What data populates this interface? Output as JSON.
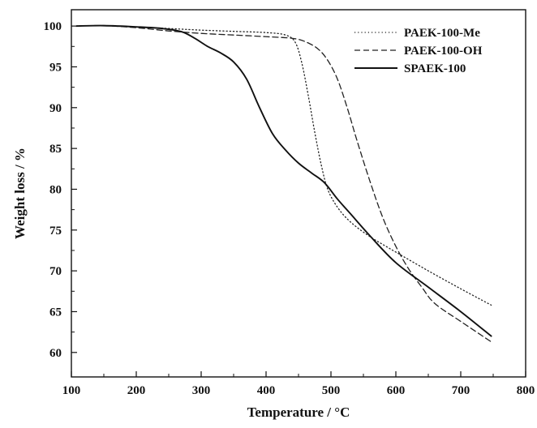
{
  "chart_data": {
    "type": "line",
    "xlabel": "Temperature / °C",
    "ylabel": "Weight loss / %",
    "xlim": [
      100,
      800
    ],
    "ylim": [
      57,
      102
    ],
    "x_ticks": [
      100,
      200,
      300,
      400,
      500,
      600,
      700,
      800
    ],
    "y_ticks": [
      60,
      65,
      70,
      75,
      80,
      85,
      90,
      95,
      100
    ],
    "grid": false,
    "legend_position": "top-right",
    "series": [
      {
        "name": "PAEK-100-Me",
        "line_style": "dotted",
        "color": "#222222",
        "points": [
          [
            108,
            100.0
          ],
          [
            150,
            100.05
          ],
          [
            200,
            99.9
          ],
          [
            250,
            99.7
          ],
          [
            300,
            99.5
          ],
          [
            350,
            99.35
          ],
          [
            400,
            99.2
          ],
          [
            430,
            98.9
          ],
          [
            445,
            98.0
          ],
          [
            455,
            95.5
          ],
          [
            465,
            91.5
          ],
          [
            475,
            87.0
          ],
          [
            485,
            83.0
          ],
          [
            495,
            80.0
          ],
          [
            510,
            77.8
          ],
          [
            530,
            76.0
          ],
          [
            560,
            74.2
          ],
          [
            600,
            72.3
          ],
          [
            650,
            70.0
          ],
          [
            700,
            67.8
          ],
          [
            747,
            65.8
          ]
        ]
      },
      {
        "name": "PAEK-100-OH",
        "line_style": "dashed",
        "color": "#222222",
        "points": [
          [
            108,
            100.0
          ],
          [
            150,
            100.05
          ],
          [
            200,
            99.8
          ],
          [
            250,
            99.4
          ],
          [
            300,
            99.1
          ],
          [
            350,
            98.9
          ],
          [
            400,
            98.7
          ],
          [
            440,
            98.5
          ],
          [
            460,
            98.1
          ],
          [
            480,
            97.2
          ],
          [
            495,
            95.8
          ],
          [
            510,
            93.5
          ],
          [
            525,
            90.0
          ],
          [
            540,
            86.0
          ],
          [
            560,
            81.0
          ],
          [
            580,
            76.5
          ],
          [
            600,
            73.0
          ],
          [
            620,
            70.2
          ],
          [
            640,
            68.0
          ],
          [
            660,
            66.0
          ],
          [
            700,
            63.8
          ],
          [
            747,
            61.3
          ]
        ]
      },
      {
        "name": "SPAEK-100",
        "line_style": "solid",
        "color": "#111111",
        "points": [
          [
            108,
            100.0
          ],
          [
            150,
            100.05
          ],
          [
            200,
            99.9
          ],
          [
            240,
            99.7
          ],
          [
            270,
            99.3
          ],
          [
            290,
            98.5
          ],
          [
            310,
            97.5
          ],
          [
            330,
            96.7
          ],
          [
            350,
            95.6
          ],
          [
            370,
            93.5
          ],
          [
            390,
            90.0
          ],
          [
            410,
            86.8
          ],
          [
            430,
            84.8
          ],
          [
            450,
            83.2
          ],
          [
            470,
            82.0
          ],
          [
            490,
            80.8
          ],
          [
            510,
            78.8
          ],
          [
            530,
            77.0
          ],
          [
            560,
            74.3
          ],
          [
            600,
            71.0
          ],
          [
            650,
            68.0
          ],
          [
            700,
            65.0
          ],
          [
            747,
            62.0
          ]
        ]
      }
    ]
  }
}
